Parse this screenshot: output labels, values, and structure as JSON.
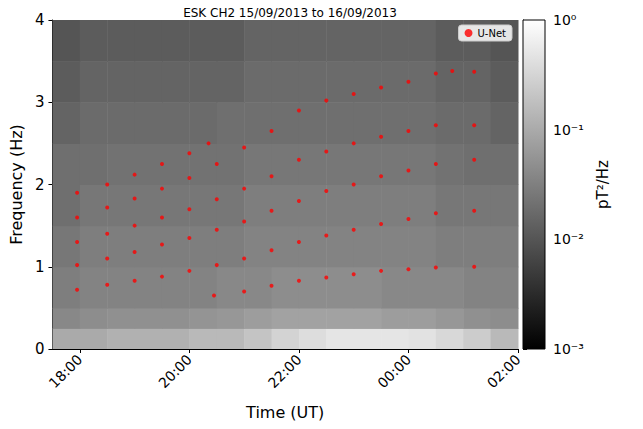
{
  "chart_data": {
    "type": "scatter",
    "title": "ESK CH2 15/09/2013 to 16/09/2013",
    "x_label": "Time (UT)",
    "y_label": "Frequency (Hz)",
    "xlim": [
      17.5,
      26
    ],
    "xticks": [
      {
        "value": 18,
        "label": "18:00"
      },
      {
        "value": 20,
        "label": "20:00"
      },
      {
        "value": 22,
        "label": "22:00"
      },
      {
        "value": 24,
        "label": "00:00"
      },
      {
        "value": 26,
        "label": "02:00"
      }
    ],
    "ylim": [
      0,
      4
    ],
    "yticks": [
      0,
      1,
      2,
      3,
      4
    ],
    "grid": false,
    "legend": "upper right",
    "series": [
      {
        "name": "U-Net",
        "color": "red",
        "marker": "circle",
        "x": [
          17.95,
          18.5,
          19,
          19.5,
          20,
          20.35,
          17.95,
          18.5,
          19,
          19.5,
          20,
          20.5,
          21,
          21.5,
          22,
          22.5,
          23,
          23.5,
          24,
          24.5,
          24.8,
          25.2,
          17.95,
          18.5,
          19,
          19.5,
          20,
          20.5,
          21,
          21.5,
          22,
          22.5,
          23,
          23.5,
          24,
          24.5,
          25.2,
          17.95,
          18.5,
          19,
          19.5,
          20,
          20.5,
          21,
          21.5,
          22,
          22.5,
          23,
          23.5,
          24,
          24.5,
          25.2,
          17.95,
          18.5,
          19,
          19.5,
          20,
          20.5,
          21,
          21.5,
          22,
          22.5,
          23,
          23.5,
          24,
          24.5,
          25.2,
          20.45,
          21,
          21.5,
          22,
          22.5,
          23,
          23.5,
          24,
          24.5,
          25.2
        ],
        "values": [
          1.9,
          2.0,
          2.12,
          2.25,
          2.38,
          2.5,
          1.6,
          1.72,
          1.83,
          1.95,
          2.08,
          2.25,
          2.45,
          2.65,
          2.9,
          3.02,
          3.1,
          3.18,
          3.25,
          3.35,
          3.38,
          3.37,
          1.3,
          1.4,
          1.5,
          1.6,
          1.7,
          1.82,
          1.95,
          2.1,
          2.3,
          2.4,
          2.5,
          2.58,
          2.65,
          2.72,
          2.72,
          1.02,
          1.1,
          1.18,
          1.27,
          1.35,
          1.45,
          1.55,
          1.68,
          1.8,
          1.92,
          2.0,
          2.1,
          2.17,
          2.25,
          2.3,
          0.72,
          0.78,
          0.83,
          0.88,
          0.95,
          1.02,
          1.1,
          1.2,
          1.3,
          1.38,
          1.45,
          1.52,
          1.58,
          1.65,
          1.68,
          0.65,
          0.7,
          0.77,
          0.83,
          0.87,
          0.91,
          0.95,
          0.97,
          0.99,
          1.0
        ]
      }
    ],
    "spectrogram": {
      "time_edges": [
        17.5,
        18,
        18.5,
        19,
        19.5,
        20,
        20.5,
        21,
        21.5,
        22,
        22.5,
        23,
        23.5,
        24,
        24.5,
        25,
        25.5,
        26
      ],
      "freq_edges": [
        0,
        0.25,
        0.5,
        1,
        1.5,
        2,
        2.5,
        3,
        3.5,
        4
      ],
      "power": [
        [
          0.1,
          0.1,
          0.12,
          0.12,
          0.12,
          0.15,
          0.15,
          0.2,
          0.3,
          0.4,
          0.5,
          0.5,
          0.5,
          0.45,
          0.35,
          0.25,
          0.15
        ],
        [
          0.04,
          0.045,
          0.05,
          0.05,
          0.05,
          0.055,
          0.06,
          0.07,
          0.08,
          0.08,
          0.08,
          0.08,
          0.07,
          0.07,
          0.06,
          0.05,
          0.045
        ],
        [
          0.03,
          0.035,
          0.035,
          0.035,
          0.035,
          0.035,
          0.04,
          0.04,
          0.045,
          0.045,
          0.045,
          0.045,
          0.04,
          0.04,
          0.04,
          0.035,
          0.035
        ],
        [
          0.025,
          0.03,
          0.03,
          0.03,
          0.03,
          0.03,
          0.03,
          0.035,
          0.035,
          0.035,
          0.035,
          0.035,
          0.035,
          0.035,
          0.03,
          0.03,
          0.03
        ],
        [
          0.02,
          0.025,
          0.025,
          0.025,
          0.025,
          0.025,
          0.025,
          0.03,
          0.03,
          0.03,
          0.03,
          0.03,
          0.03,
          0.03,
          0.025,
          0.025,
          0.025
        ],
        [
          0.02,
          0.02,
          0.022,
          0.022,
          0.022,
          0.022,
          0.022,
          0.025,
          0.025,
          0.025,
          0.025,
          0.025,
          0.025,
          0.025,
          0.022,
          0.02,
          0.02
        ],
        [
          0.015,
          0.018,
          0.018,
          0.018,
          0.018,
          0.018,
          0.02,
          0.02,
          0.02,
          0.02,
          0.02,
          0.02,
          0.02,
          0.02,
          0.018,
          0.018,
          0.015
        ],
        [
          0.012,
          0.015,
          0.015,
          0.015,
          0.015,
          0.015,
          0.015,
          0.018,
          0.018,
          0.018,
          0.018,
          0.018,
          0.018,
          0.018,
          0.015,
          0.015,
          0.012
        ],
        [
          0.01,
          0.012,
          0.012,
          0.012,
          0.012,
          0.012,
          0.012,
          0.015,
          0.015,
          0.015,
          0.015,
          0.015,
          0.015,
          0.015,
          0.012,
          0.012,
          0.01
        ]
      ]
    },
    "colorbar": {
      "label": "pT²/Hz",
      "log": true,
      "range": [
        0.001,
        1
      ],
      "ticks": [
        {
          "value": 0.001,
          "label": "10⁻³"
        },
        {
          "value": 0.01,
          "label": "10⁻²"
        },
        {
          "value": 0.1,
          "label": "10⁻¹"
        },
        {
          "value": 1,
          "label": "10⁰"
        }
      ]
    }
  }
}
